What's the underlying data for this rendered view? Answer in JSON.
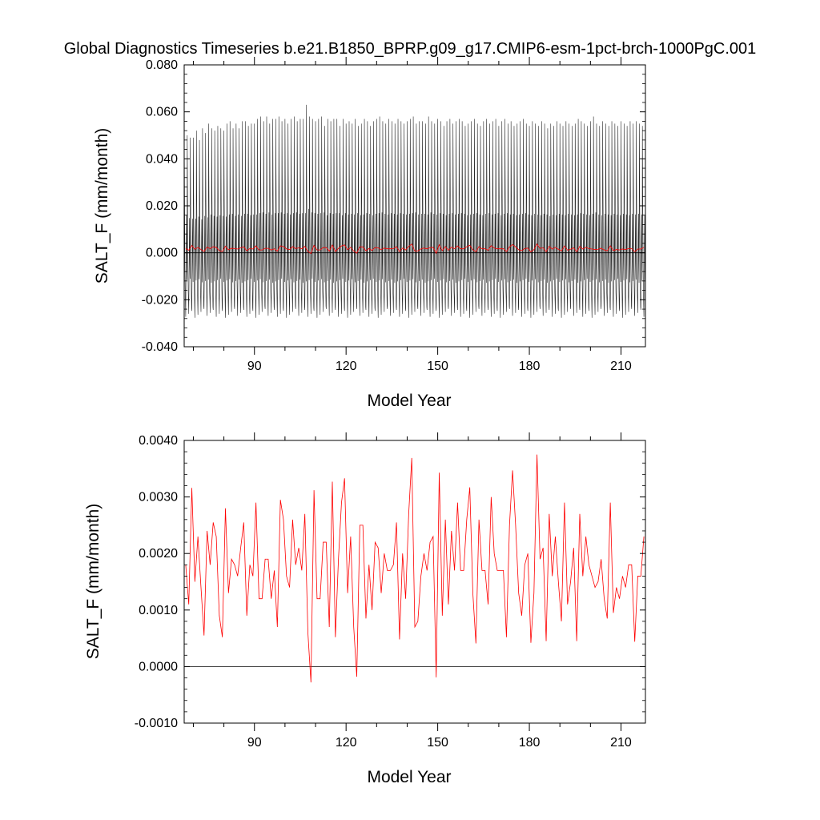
{
  "figure": {
    "title": "Global Diagnostics Timeseries b.e21.B1850_BPRP.g09_g17.CMIP6-esm-1pct-brch-1000PgC.001"
  },
  "chart_data": [
    {
      "type": "line",
      "xlabel": "Model Year",
      "ylabel": "SALT_F (mm/month)",
      "xlim": [
        67,
        218
      ],
      "ylim": [
        -0.04,
        0.08
      ],
      "x_ticks": [
        90,
        120,
        150,
        180,
        210
      ],
      "x_tick_labels": [
        "90",
        "120",
        "150",
        "180",
        "210"
      ],
      "y_ticks": [
        -0.04,
        -0.02,
        0.0,
        0.02,
        0.04,
        0.06,
        0.08
      ],
      "y_tick_labels": [
        "-0.040",
        "-0.020",
        "0.000",
        "0.020",
        "0.040",
        "0.060",
        "0.080"
      ],
      "zero_line": true,
      "series": [
        {
          "color": "#000000",
          "resolution": "monthly",
          "x_start": 67,
          "seasonal_cycle": [
            0.054,
            0.032,
            0.012,
            -0.006,
            -0.016,
            -0.022,
            -0.026,
            -0.012,
            0.004,
            0.016,
            -0.004,
            -0.012
          ],
          "annual_peak": [
            0.054,
            0.05,
            0.049,
            0.049,
            0.052,
            0.048,
            0.053,
            0.051,
            0.055,
            0.053,
            0.052,
            0.054,
            0.053,
            0.052,
            0.055,
            0.056,
            0.053,
            0.055,
            0.053,
            0.056,
            0.056,
            0.054,
            0.055,
            0.055,
            0.057,
            0.058,
            0.056,
            0.058,
            0.055,
            0.057,
            0.057,
            0.058,
            0.056,
            0.057,
            0.055,
            0.057,
            0.058,
            0.056,
            0.057,
            0.057,
            0.063,
            0.058,
            0.057,
            0.056,
            0.057,
            0.058,
            0.054,
            0.057,
            0.056,
            0.057,
            0.057,
            0.054,
            0.057,
            0.055,
            0.056,
            0.055,
            0.057,
            0.054,
            0.055,
            0.057,
            0.056,
            0.054,
            0.056,
            0.057,
            0.058,
            0.056,
            0.055,
            0.057,
            0.056,
            0.055,
            0.057,
            0.056,
            0.055,
            0.056,
            0.057,
            0.058,
            0.055,
            0.056,
            0.056,
            0.055,
            0.058,
            0.056,
            0.055,
            0.057,
            0.056,
            0.054,
            0.056,
            0.057,
            0.055,
            0.056,
            0.057,
            0.056,
            0.054,
            0.055,
            0.056,
            0.057,
            0.055,
            0.054,
            0.056,
            0.057,
            0.055,
            0.056,
            0.057,
            0.054,
            0.056,
            0.057,
            0.055,
            0.056,
            0.054,
            0.055,
            0.056,
            0.057,
            0.055,
            0.054,
            0.056,
            0.055,
            0.054,
            0.056,
            0.055,
            0.053,
            0.055,
            0.054,
            0.056,
            0.055,
            0.054,
            0.056,
            0.055,
            0.054,
            0.055,
            0.057,
            0.056,
            0.055,
            0.054,
            0.056,
            0.058,
            0.055,
            0.054,
            0.056,
            0.055,
            0.054,
            0.056,
            0.055,
            0.054,
            0.056,
            0.055,
            0.054,
            0.056,
            0.055,
            0.056,
            0.055,
            0.054
          ]
        },
        {
          "color": "#ff0000",
          "resolution": "annual",
          "ref": "annual"
        }
      ]
    },
    {
      "type": "line",
      "xlabel": "Model Year",
      "ylabel": "SALT_F (mm/month)",
      "xlim": [
        67,
        218
      ],
      "ylim": [
        -0.001,
        0.004
      ],
      "x_ticks": [
        90,
        120,
        150,
        180,
        210
      ],
      "x_tick_labels": [
        "90",
        "120",
        "150",
        "180",
        "210"
      ],
      "y_ticks": [
        -0.001,
        0.0,
        0.001,
        0.002,
        0.003,
        0.004
      ],
      "y_tick_labels": [
        "-0.0010",
        "0.0000",
        "0.0010",
        "0.0020",
        "0.0030",
        "0.0040"
      ],
      "zero_line": true,
      "series": [
        {
          "color": "#ff0000",
          "resolution": "annual",
          "x_start": 67,
          "values": [
            0.0018,
            0.0011,
            0.00316,
            0.0015,
            0.0023,
            0.0014,
            0.00055,
            0.0024,
            0.0018,
            0.00255,
            0.0023,
            0.0009,
            0.00052,
            0.0028,
            0.0013,
            0.0019,
            0.0018,
            0.0016,
            0.0021,
            0.00255,
            0.0009,
            0.0018,
            0.0016,
            0.0029,
            0.0012,
            0.0012,
            0.0019,
            0.0019,
            0.0012,
            0.0017,
            0.0007,
            0.00295,
            0.0026,
            0.0016,
            0.0014,
            0.0026,
            0.0018,
            0.0021,
            0.0017,
            0.0027,
            0.0006,
            -0.00028,
            0.00312,
            0.0012,
            0.0012,
            0.0022,
            0.0022,
            0.0007,
            0.00327,
            0.00052,
            0.0019,
            0.0029,
            0.00333,
            0.0013,
            0.0023,
            0.0007,
            -0.00018,
            0.0025,
            0.0025,
            0.00085,
            0.0018,
            0.001,
            0.0022,
            0.0021,
            0.0013,
            0.002,
            0.0017,
            0.0017,
            0.0018,
            0.00255,
            0.00048,
            0.002,
            0.0012,
            0.0027,
            0.00369,
            0.0007,
            0.0008,
            0.0016,
            0.002,
            0.0017,
            0.0022,
            0.0023,
            -0.00019,
            0.00343,
            0.0009,
            0.0026,
            0.0011,
            0.0024,
            0.0017,
            0.0029,
            0.0017,
            0.0017,
            0.0026,
            0.00317,
            0.0013,
            0.00041,
            0.0026,
            0.0017,
            0.0017,
            0.0011,
            0.003,
            0.002,
            0.0017,
            0.0017,
            0.0017,
            0.00052,
            0.0025,
            0.00347,
            0.0025,
            0.0013,
            0.0009,
            0.0018,
            0.002,
            0.00042,
            0.0013,
            0.00375,
            0.0019,
            0.0021,
            0.00045,
            0.0027,
            0.0016,
            0.0023,
            0.0015,
            0.0008,
            0.0029,
            0.0011,
            0.0015,
            0.0021,
            0.00045,
            0.0027,
            0.0016,
            0.0023,
            0.0018,
            0.0016,
            0.0014,
            0.0015,
            0.0019,
            0.0012,
            0.00085,
            0.0029,
            0.00095,
            0.0014,
            0.0012,
            0.0016,
            0.0014,
            0.0018,
            0.0018,
            0.00044,
            0.0016,
            0.0016,
            0.0023
          ]
        }
      ]
    }
  ]
}
